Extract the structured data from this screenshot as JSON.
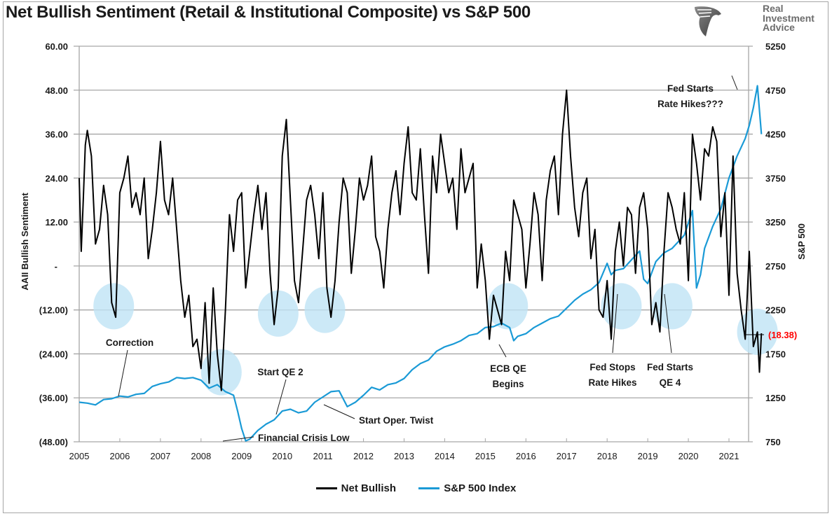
{
  "chart_data": {
    "type": "line",
    "title": "Net Bullish Sentiment (Retail & Institutional Composite) vs S&P 500",
    "xlabel": "",
    "ylabel": "AAII Bullish Sentiment",
    "y2label": "S&P 500",
    "xlim": [
      2005,
      2021.8
    ],
    "ylim": [
      -48,
      60
    ],
    "y2lim": [
      750,
      5250
    ],
    "grid": true,
    "legend_position": "bottom",
    "x_ticks": [
      "2005",
      "2006",
      "2007",
      "2008",
      "2009",
      "2010",
      "2011",
      "2012",
      "2013",
      "2014",
      "2015",
      "2016",
      "2017",
      "2018",
      "2019",
      "2020",
      "2021"
    ],
    "y_ticks": [
      "60.00",
      "48.00",
      "36.00",
      "24.00",
      "12.00",
      "-",
      "(12.00)",
      "(24.00)",
      "(36.00)",
      "(48.00)"
    ],
    "y2_ticks": [
      "5250",
      "4750",
      "4250",
      "3750",
      "3250",
      "2750",
      "2250",
      "1750",
      "1250",
      "750"
    ],
    "series": [
      {
        "name": "Net Bullish",
        "axis": "left",
        "color": "#000000",
        "x": [
          2005.0,
          2005.05,
          2005.1,
          2005.15,
          2005.2,
          2005.3,
          2005.4,
          2005.5,
          2005.6,
          2005.7,
          2005.8,
          2005.9,
          2006.0,
          2006.1,
          2006.2,
          2006.3,
          2006.4,
          2006.5,
          2006.6,
          2006.7,
          2006.8,
          2006.9,
          2007.0,
          2007.1,
          2007.2,
          2007.3,
          2007.4,
          2007.5,
          2007.6,
          2007.7,
          2007.8,
          2007.9,
          2008.0,
          2008.1,
          2008.2,
          2008.3,
          2008.4,
          2008.5,
          2008.6,
          2008.7,
          2008.8,
          2008.9,
          2009.0,
          2009.1,
          2009.2,
          2009.3,
          2009.4,
          2009.5,
          2009.6,
          2009.7,
          2009.8,
          2009.9,
          2010.0,
          2010.1,
          2010.2,
          2010.3,
          2010.4,
          2010.5,
          2010.6,
          2010.7,
          2010.8,
          2010.9,
          2011.0,
          2011.1,
          2011.2,
          2011.3,
          2011.4,
          2011.5,
          2011.6,
          2011.7,
          2011.8,
          2011.9,
          2012.0,
          2012.1,
          2012.2,
          2012.3,
          2012.4,
          2012.5,
          2012.6,
          2012.7,
          2012.8,
          2012.9,
          2013.0,
          2013.1,
          2013.2,
          2013.3,
          2013.4,
          2013.5,
          2013.6,
          2013.7,
          2013.8,
          2013.9,
          2014.0,
          2014.1,
          2014.2,
          2014.3,
          2014.4,
          2014.5,
          2014.6,
          2014.7,
          2014.8,
          2014.9,
          2015.0,
          2015.1,
          2015.2,
          2015.3,
          2015.4,
          2015.5,
          2015.6,
          2015.7,
          2015.8,
          2015.9,
          2016.0,
          2016.1,
          2016.2,
          2016.3,
          2016.4,
          2016.5,
          2016.6,
          2016.7,
          2016.8,
          2016.9,
          2017.0,
          2017.1,
          2017.2,
          2017.3,
          2017.4,
          2017.5,
          2017.6,
          2017.7,
          2017.8,
          2017.9,
          2018.0,
          2018.1,
          2018.2,
          2018.3,
          2018.4,
          2018.5,
          2018.6,
          2018.7,
          2018.8,
          2018.9,
          2019.0,
          2019.1,
          2019.2,
          2019.3,
          2019.4,
          2019.5,
          2019.6,
          2019.7,
          2019.8,
          2019.9,
          2020.0,
          2020.1,
          2020.2,
          2020.3,
          2020.4,
          2020.5,
          2020.6,
          2020.7,
          2020.8,
          2020.9,
          2021.0,
          2021.1,
          2021.2,
          2021.3,
          2021.4,
          2021.5,
          2021.6,
          2021.7,
          2021.75,
          2021.8
        ],
        "y": [
          24,
          4,
          18,
          33,
          37,
          30,
          6,
          10,
          22,
          14,
          -10,
          -14,
          20,
          24,
          30,
          16,
          20,
          14,
          24,
          2,
          10,
          20,
          34,
          18,
          14,
          24,
          10,
          -4,
          -14,
          -8,
          -22,
          -20,
          -28,
          -10,
          -32,
          -6,
          -24,
          -34,
          -12,
          14,
          4,
          18,
          20,
          -6,
          4,
          14,
          22,
          10,
          20,
          -2,
          -16,
          -6,
          30,
          40,
          18,
          -4,
          -10,
          4,
          18,
          22,
          14,
          2,
          20,
          -6,
          -14,
          -4,
          12,
          24,
          20,
          -2,
          10,
          24,
          18,
          22,
          30,
          8,
          4,
          -6,
          10,
          20,
          26,
          14,
          28,
          38,
          20,
          18,
          32,
          14,
          -2,
          30,
          20,
          36,
          28,
          20,
          24,
          10,
          32,
          20,
          24,
          28,
          -6,
          6,
          -4,
          -20,
          -8,
          -12,
          -16,
          4,
          -4,
          18,
          14,
          10,
          -6,
          6,
          20,
          14,
          -4,
          18,
          26,
          30,
          14,
          36,
          48,
          30,
          16,
          8,
          20,
          24,
          2,
          10,
          -12,
          -14,
          -4,
          -20,
          4,
          12,
          0,
          16,
          14,
          -2,
          16,
          20,
          10,
          -16,
          -10,
          -18,
          4,
          20,
          16,
          10,
          6,
          20,
          -4,
          36,
          28,
          18,
          32,
          30,
          38,
          34,
          8,
          20,
          -8,
          30,
          -2,
          -12,
          -20,
          4,
          -22,
          -18,
          -29,
          -18.38
        ]
      },
      {
        "name": "S&P 500 Index",
        "axis": "right",
        "color": "#1a9ad6",
        "x": [
          2005.0,
          2005.2,
          2005.4,
          2005.6,
          2005.8,
          2006.0,
          2006.2,
          2006.4,
          2006.6,
          2006.8,
          2007.0,
          2007.2,
          2007.4,
          2007.6,
          2007.8,
          2008.0,
          2008.2,
          2008.4,
          2008.6,
          2008.8,
          2008.9,
          2009.0,
          2009.1,
          2009.2,
          2009.4,
          2009.6,
          2009.8,
          2010.0,
          2010.2,
          2010.4,
          2010.6,
          2010.8,
          2011.0,
          2011.2,
          2011.4,
          2011.6,
          2011.8,
          2012.0,
          2012.2,
          2012.4,
          2012.6,
          2012.8,
          2013.0,
          2013.2,
          2013.4,
          2013.6,
          2013.8,
          2014.0,
          2014.2,
          2014.4,
          2014.6,
          2014.8,
          2015.0,
          2015.2,
          2015.4,
          2015.6,
          2015.7,
          2015.8,
          2016.0,
          2016.2,
          2016.4,
          2016.6,
          2016.8,
          2017.0,
          2017.2,
          2017.4,
          2017.6,
          2017.8,
          2018.0,
          2018.1,
          2018.2,
          2018.4,
          2018.6,
          2018.8,
          2018.9,
          2019.0,
          2019.2,
          2019.4,
          2019.6,
          2019.8,
          2019.9,
          2020.0,
          2020.1,
          2020.2,
          2020.3,
          2020.4,
          2020.6,
          2020.8,
          2021.0,
          2021.2,
          2021.4,
          2021.5,
          2021.6,
          2021.7,
          2021.8
        ],
        "y": [
          1200,
          1190,
          1170,
          1230,
          1240,
          1270,
          1260,
          1290,
          1300,
          1380,
          1410,
          1430,
          1480,
          1470,
          1480,
          1450,
          1360,
          1400,
          1320,
          1280,
          1100,
          900,
          760,
          780,
          880,
          950,
          1000,
          1100,
          1120,
          1080,
          1100,
          1200,
          1260,
          1320,
          1330,
          1150,
          1200,
          1280,
          1370,
          1340,
          1400,
          1420,
          1470,
          1570,
          1640,
          1680,
          1780,
          1830,
          1860,
          1900,
          1960,
          1980,
          2050,
          2060,
          2100,
          2050,
          1900,
          1950,
          1980,
          2050,
          2100,
          2150,
          2180,
          2270,
          2360,
          2430,
          2480,
          2560,
          2780,
          2650,
          2700,
          2720,
          2820,
          2920,
          2600,
          2550,
          2800,
          2900,
          2950,
          3050,
          3100,
          3240,
          3380,
          2500,
          2650,
          2950,
          3200,
          3400,
          3750,
          4000,
          4200,
          4350,
          4550,
          4800,
          4250
        ]
      }
    ],
    "annotations": [
      {
        "text": "Correction",
        "x": 2005.9,
        "y2": 1250
      },
      {
        "text": "Start QE 2",
        "x": 2010.0,
        "y2": 1050
      },
      {
        "text": "Financial Crisis Low",
        "x": 2008.7,
        "y2": 760
      },
      {
        "text": "Start Oper. Twist",
        "x": 2011.25,
        "y2": 1160
      },
      {
        "text": "ECB QE Begins",
        "x": 2015.7,
        "y2": 1870
      },
      {
        "text": "Fed Stops Rate Hikes",
        "x": 2018.95,
        "y2": 2550
      },
      {
        "text": "Fed Starts QE 4",
        "x": 2019.7,
        "y2": 2550
      },
      {
        "text": "Fed Starts Rate Hikes???",
        "x": 2021.85,
        "y2": 4800
      }
    ],
    "highlight_circles_years": [
      2005.85,
      2008.5,
      2009.9,
      2011.05,
      2015.55,
      2018.35,
      2019.6,
      2021.7
    ],
    "highlight_circles_values": [
      -11,
      -29,
      -13,
      -12,
      -11,
      -11,
      -11,
      -18
    ],
    "current_value_label": "(18.38)",
    "current_value_color": "#ff0000"
  },
  "brand": {
    "line1": "Real",
    "line2": "Investment",
    "line3": "Advice"
  },
  "legend": {
    "items": [
      {
        "label": "Net Bullish",
        "color": "#000000"
      },
      {
        "label": "S&P 500 Index",
        "color": "#1a9ad6"
      }
    ]
  }
}
